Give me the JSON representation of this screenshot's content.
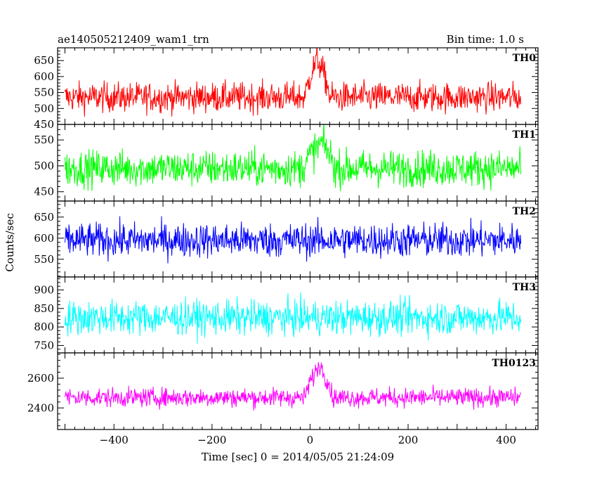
{
  "header": {
    "left_title": "ae140505212409_wam1_trn",
    "right_title": "Bin time: 1.0 s"
  },
  "chart_data": {
    "type": "line",
    "ylabel": "Counts/sec",
    "xlabel": "Time [sec] 0 = 2014/05/05 21:24:09",
    "xlim": [
      -515,
      465
    ],
    "x_ticks": [
      -400,
      -200,
      0,
      200,
      400
    ],
    "x_ticklabels": [
      "−400",
      "−200",
      "0",
      "200",
      "400"
    ],
    "bin_time": 1.0,
    "data_range": [
      -500,
      430
    ],
    "panels": [
      {
        "name": "TH0",
        "color": "#ff0000",
        "ylim": [
          450,
          690
        ],
        "yticks": [
          450,
          500,
          550,
          600,
          650
        ],
        "mean": 535,
        "amplitude": 40,
        "burst": {
          "peak": 655,
          "start": -10,
          "end": 40,
          "center": 15
        }
      },
      {
        "name": "TH1",
        "color": "#00ff00",
        "ylim": [
          432,
          580
        ],
        "yticks": [
          450,
          500,
          550
        ],
        "mean": 495,
        "amplitude": 30,
        "burst": {
          "peak": 545,
          "start": -15,
          "end": 50,
          "center": 25
        }
      },
      {
        "name": "TH2",
        "color": "#0000ff",
        "ylim": [
          508,
          688
        ],
        "yticks": [
          550,
          600,
          650
        ],
        "mean": 595,
        "amplitude": 35,
        "burst": null
      },
      {
        "name": "TH3",
        "color": "#00ffff",
        "ylim": [
          730,
          935
        ],
        "yticks": [
          750,
          800,
          850,
          900
        ],
        "mean": 825,
        "amplitude": 40,
        "burst": null
      },
      {
        "name": "TH0123",
        "color": "#ff00ff",
        "ylim": [
          2255,
          2770
        ],
        "yticks": [
          2400,
          2600
        ],
        "mean": 2470,
        "amplitude": 55,
        "burst": {
          "peak": 2690,
          "start": -10,
          "end": 45,
          "center": 20
        }
      }
    ]
  }
}
